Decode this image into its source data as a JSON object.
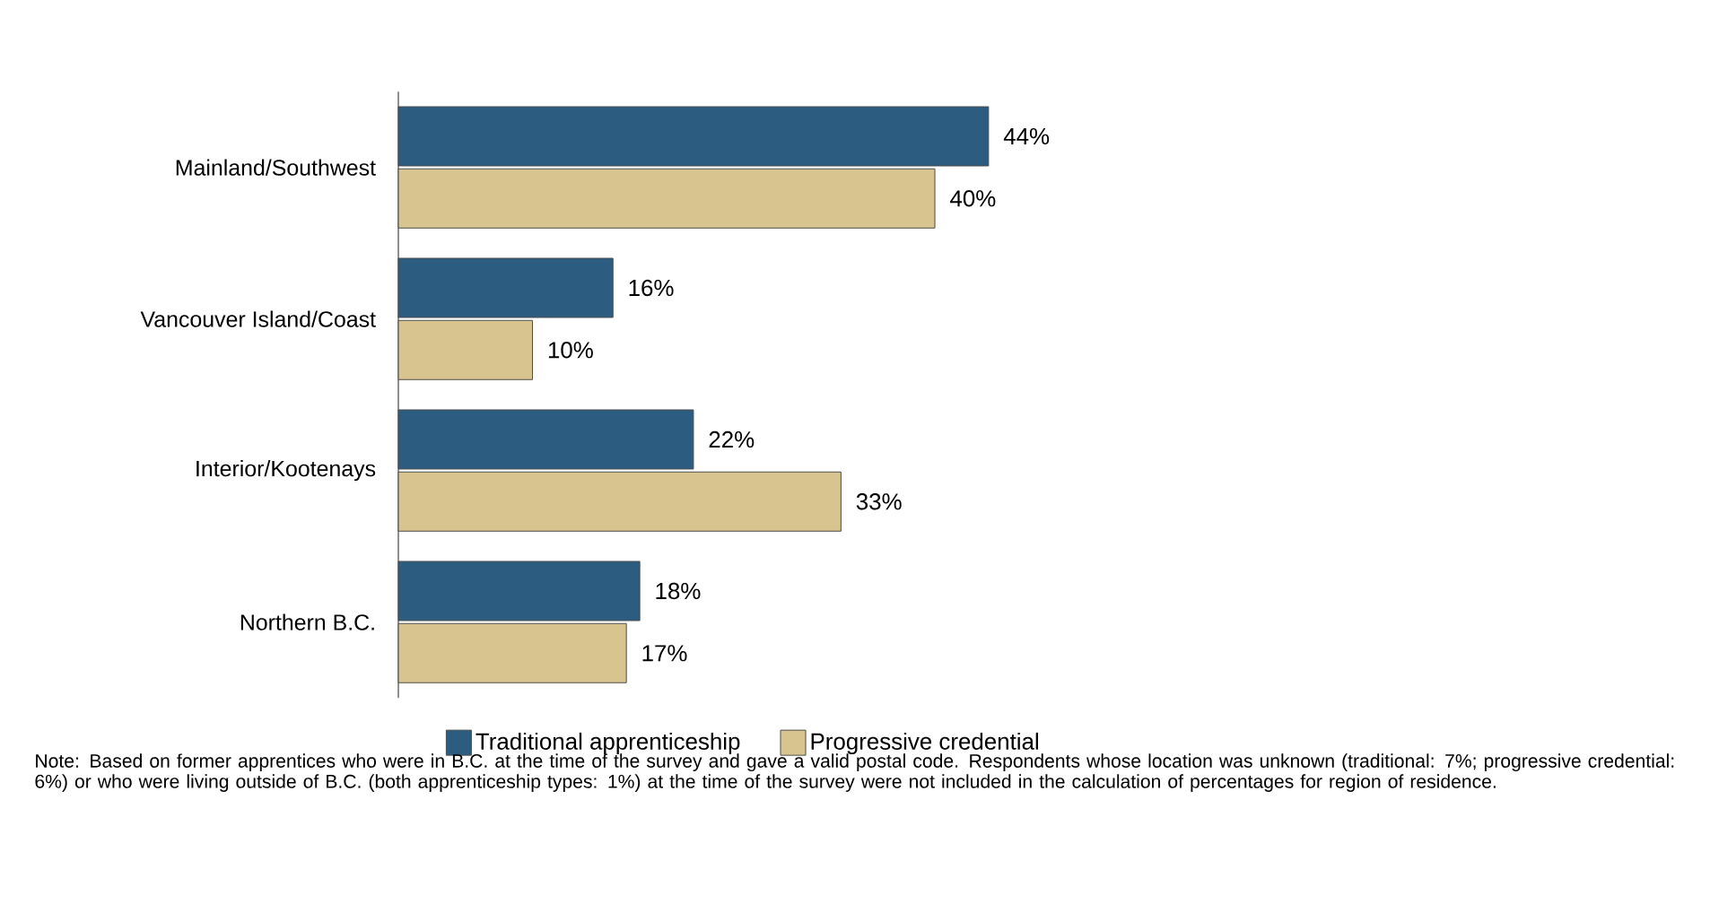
{
  "chart_data": {
    "type": "bar",
    "orientation": "horizontal",
    "categories": [
      "Mainland/Southwest",
      "Vancouver Island/Coast",
      "Interior/Kootenays",
      "Northern B.C."
    ],
    "series": [
      {
        "name": "Traditional apprenticeship",
        "color": "#2c5d80",
        "values": [
          44,
          16,
          22,
          18
        ],
        "value_labels": [
          "44%",
          "16%",
          "22%",
          "18%"
        ]
      },
      {
        "name": "Progressive credential",
        "color": "#d8c48e",
        "values": [
          40,
          10,
          33,
          17
        ],
        "value_labels": [
          "40%",
          "10%",
          "33%",
          "17%"
        ]
      }
    ],
    "legend": "bottom",
    "annotations": [
      "Note: Based on former apprentices who were in B.C. at the time of the survey and gave a valid postal code. Respondents whose location was unknown (traditional: 7%; progressive credential: 6%) or who were living outside of B.C. (both apprenticeship types: 1%) at the time of the survey were not included in the calculation of percentages for region of residence."
    ]
  }
}
